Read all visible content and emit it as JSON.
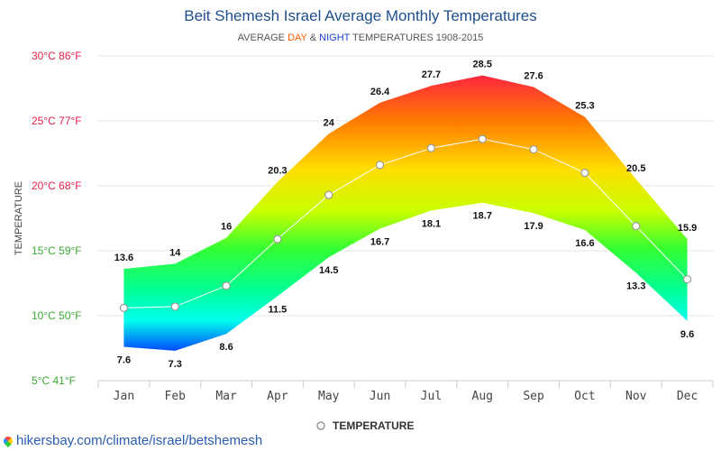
{
  "header": {
    "title": "Beit Shemesh Israel Average Monthly Temperatures",
    "subtitle_prefix": "AVERAGE",
    "subtitle_day": "DAY",
    "subtitle_amp": "&",
    "subtitle_night": "NIGHT",
    "subtitle_suffix": "TEMPERATURES 1908-2015"
  },
  "footer": {
    "link_text": "hikersbay.com/climate/israel/betshemesh"
  },
  "chart_data": {
    "type": "area",
    "categories": [
      "Jan",
      "Feb",
      "Mar",
      "Apr",
      "May",
      "Jun",
      "Jul",
      "Aug",
      "Sep",
      "Oct",
      "Nov",
      "Dec"
    ],
    "series": [
      {
        "name": "DAY",
        "values": [
          13.6,
          14,
          16,
          20.3,
          24,
          26.4,
          27.7,
          28.5,
          27.6,
          25.3,
          20.5,
          15.9
        ]
      },
      {
        "name": "NIGHT",
        "values": [
          7.6,
          7.3,
          8.6,
          11.5,
          14.5,
          16.7,
          18.1,
          18.7,
          17.9,
          16.6,
          13.3,
          9.6
        ]
      },
      {
        "name": "TEMPERATURE",
        "values": [
          10.6,
          10.7,
          12.3,
          15.9,
          19.3,
          21.6,
          22.9,
          23.6,
          22.8,
          21.0,
          16.9,
          12.8
        ]
      }
    ],
    "ylabel": "TEMPERATURE",
    "ylim": [
      5,
      30
    ],
    "yticks": [
      {
        "value": 30,
        "label": "30°C 86°F",
        "color": "#e8204a"
      },
      {
        "value": 25,
        "label": "25°C 77°F",
        "color": "#e8204a"
      },
      {
        "value": 20,
        "label": "20°C 68°F",
        "color": "#e8204a"
      },
      {
        "value": 15,
        "label": "15°C 59°F",
        "color": "#3aaa35"
      },
      {
        "value": 10,
        "label": "10°C 50°F",
        "color": "#3aaa35"
      },
      {
        "value": 5,
        "label": "5°C 41°F",
        "color": "#3aaa35"
      }
    ],
    "legend": {
      "position": "bottom",
      "entries": [
        "TEMPERATURE"
      ]
    },
    "grid": true
  }
}
